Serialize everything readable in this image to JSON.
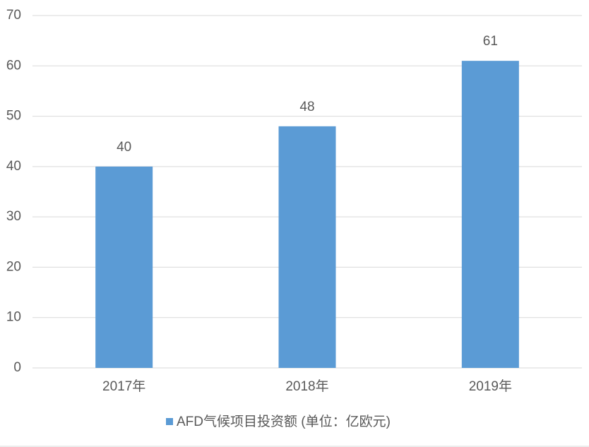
{
  "chart_data": {
    "type": "bar",
    "categories": [
      "2017年",
      "2018年",
      "2019年"
    ],
    "series": [
      {
        "name": "AFD气候项目投资额 (单位：亿欧元)",
        "color": "#5b9bd5",
        "values": [
          40,
          48,
          61
        ]
      }
    ],
    "ylim": [
      0,
      70
    ],
    "yticks": [
      0,
      10,
      20,
      30,
      40,
      50,
      60,
      70
    ],
    "grid": true,
    "legend": "bottom"
  }
}
